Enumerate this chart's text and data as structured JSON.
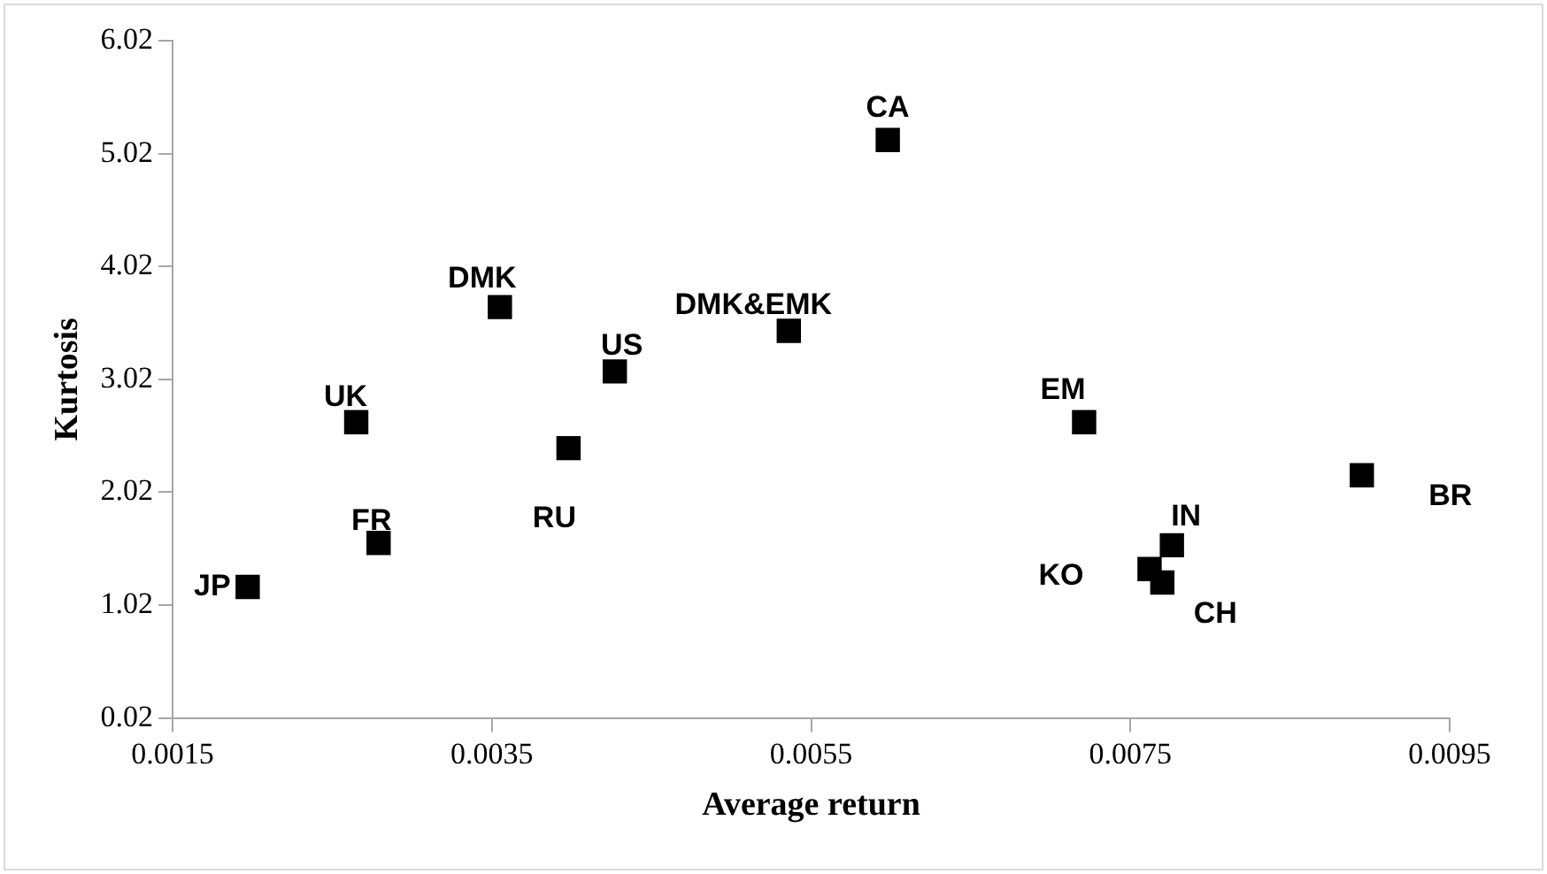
{
  "chart_data": {
    "type": "scatter",
    "xlabel": "Average return",
    "ylabel": "Kurtosis",
    "x": [
      0.00197,
      0.00279,
      0.00265,
      0.00355,
      0.00398,
      0.00427,
      0.00536,
      0.00598,
      0.00721,
      0.00776,
      0.00762,
      0.0077,
      0.00895
    ],
    "values": [
      1.18,
      1.57,
      2.64,
      3.66,
      2.41,
      3.09,
      3.45,
      5.14,
      2.64,
      1.55,
      1.34,
      1.22,
      2.17
    ],
    "color": "#000000",
    "marker": "square",
    "grid": false,
    "legend": false,
    "xlim": [
      0.0015,
      0.0095
    ],
    "xticks": [
      0.0015,
      0.0035,
      0.0055,
      0.0075,
      0.0095
    ],
    "ylim": [
      0.02,
      6.02
    ],
    "yticks": [
      0.02,
      1.02,
      2.02,
      3.02,
      4.02,
      5.02,
      6.02
    ],
    "annotations": [
      {
        "text": "JP",
        "x": 0.00197,
        "y": 1.18
      },
      {
        "text": "FR",
        "x": 0.00279,
        "y": 1.57
      },
      {
        "text": "UK",
        "x": 0.00265,
        "y": 2.64
      },
      {
        "text": "DMK",
        "x": 0.00355,
        "y": 3.66
      },
      {
        "text": "RU",
        "x": 0.00398,
        "y": 2.41
      },
      {
        "text": "US",
        "x": 0.00427,
        "y": 3.09
      },
      {
        "text": "DMK&EMK",
        "x": 0.00536,
        "y": 3.45
      },
      {
        "text": "CA",
        "x": 0.00598,
        "y": 5.14
      },
      {
        "text": "EM",
        "x": 0.00721,
        "y": 2.64
      },
      {
        "text": "IN",
        "x": 0.00776,
        "y": 1.55
      },
      {
        "text": "KO",
        "x": 0.00762,
        "y": 1.34
      },
      {
        "text": "CH",
        "x": 0.0077,
        "y": 1.22
      },
      {
        "text": "BR",
        "x": 0.00895,
        "y": 2.17
      }
    ]
  }
}
